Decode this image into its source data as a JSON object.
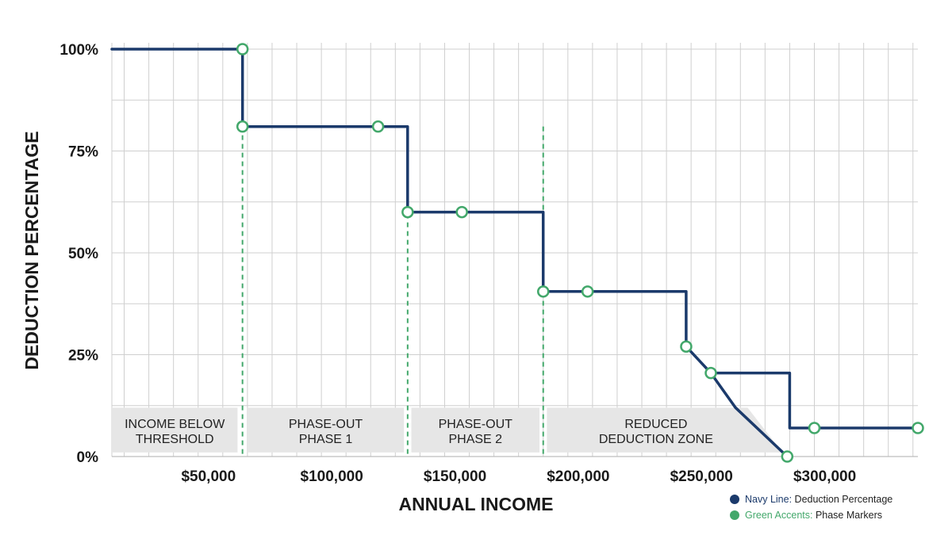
{
  "chart_data": {
    "type": "line",
    "title": "",
    "xlabel": "ANNUAL INCOME",
    "ylabel": "DEDUCTION PERCENTAGE",
    "xlim": [
      5000,
      332000
    ],
    "ylim": [
      0,
      100
    ],
    "x_ticks": [
      {
        "value": 50000,
        "label": "$50,000"
      },
      {
        "value": 100000,
        "label": "$100,000"
      },
      {
        "value": 150000,
        "label": "$150,000"
      },
      {
        "value": 200000,
        "label": "$200,000"
      },
      {
        "value": 250000,
        "label": "$250,000"
      },
      {
        "value": 300000,
        "label": "$300,000"
      }
    ],
    "y_ticks": [
      {
        "value": 0,
        "label": "0%"
      },
      {
        "value": 25,
        "label": "25%"
      },
      {
        "value": 50,
        "label": "50%"
      },
      {
        "value": 75,
        "label": "75%"
      },
      {
        "value": 100,
        "label": "100%"
      }
    ],
    "grid": true,
    "series": [
      {
        "name": "Deduction Percentage",
        "color": "#1b3a6b",
        "points": [
          [
            5000,
            100
          ],
          [
            58000,
            100
          ],
          [
            58000,
            81
          ],
          [
            125000,
            81
          ],
          [
            125000,
            60
          ],
          [
            180000,
            60
          ],
          [
            180000,
            40.5
          ],
          [
            238000,
            40.5
          ],
          [
            238000,
            27
          ],
          [
            248000,
            20.5
          ],
          [
            280000,
            20.5
          ],
          [
            280000,
            7
          ],
          [
            332000,
            7
          ]
        ]
      },
      {
        "name": "Deduction Percentage",
        "color": "#1b3a6b",
        "points": [
          [
            248000,
            20.5
          ],
          [
            258000,
            12
          ],
          [
            279000,
            0
          ]
        ]
      }
    ],
    "markers": [
      {
        "x": 58000,
        "y": 100
      },
      {
        "x": 58000,
        "y": 81
      },
      {
        "x": 113000,
        "y": 81
      },
      {
        "x": 125000,
        "y": 60
      },
      {
        "x": 147000,
        "y": 60
      },
      {
        "x": 180000,
        "y": 40.5
      },
      {
        "x": 198000,
        "y": 40.5
      },
      {
        "x": 238000,
        "y": 27
      },
      {
        "x": 248000,
        "y": 20.5
      },
      {
        "x": 279000,
        "y": 0
      },
      {
        "x": 290000,
        "y": 7
      },
      {
        "x": 332000,
        "y": 7
      }
    ],
    "phase_lines": [
      58000,
      125000,
      180000
    ],
    "zones": [
      {
        "x0": 5000,
        "x1": 56000,
        "lines": [
          "INCOME BELOW",
          "THRESHOLD"
        ]
      },
      {
        "x0": 60000,
        "x1": 123500,
        "lines": [
          "PHASE-OUT",
          "PHASE 1"
        ]
      },
      {
        "x0": 126500,
        "x1": 178500,
        "lines": [
          "PHASE-OUT",
          "PHASE 2"
        ]
      },
      {
        "x0": 181500,
        "x1": 270000,
        "lines": [
          "REDUCED",
          "DEDUCTION ZONE"
        ]
      }
    ],
    "zone_y_range": [
      1,
      12
    ],
    "colors": {
      "navy": "#1b3a6b",
      "green": "#43a86b",
      "grid": "#cfcfcf",
      "zone_fill": "#e6e6e6"
    },
    "legend": {
      "placement": "bottom-right",
      "items": [
        {
          "key": "Navy Line:",
          "text": " Deduction Percentage",
          "color": "#1b3a6b"
        },
        {
          "key": "Green Accents:",
          "text": " Phase Markers",
          "color": "#43a86b"
        }
      ]
    }
  }
}
